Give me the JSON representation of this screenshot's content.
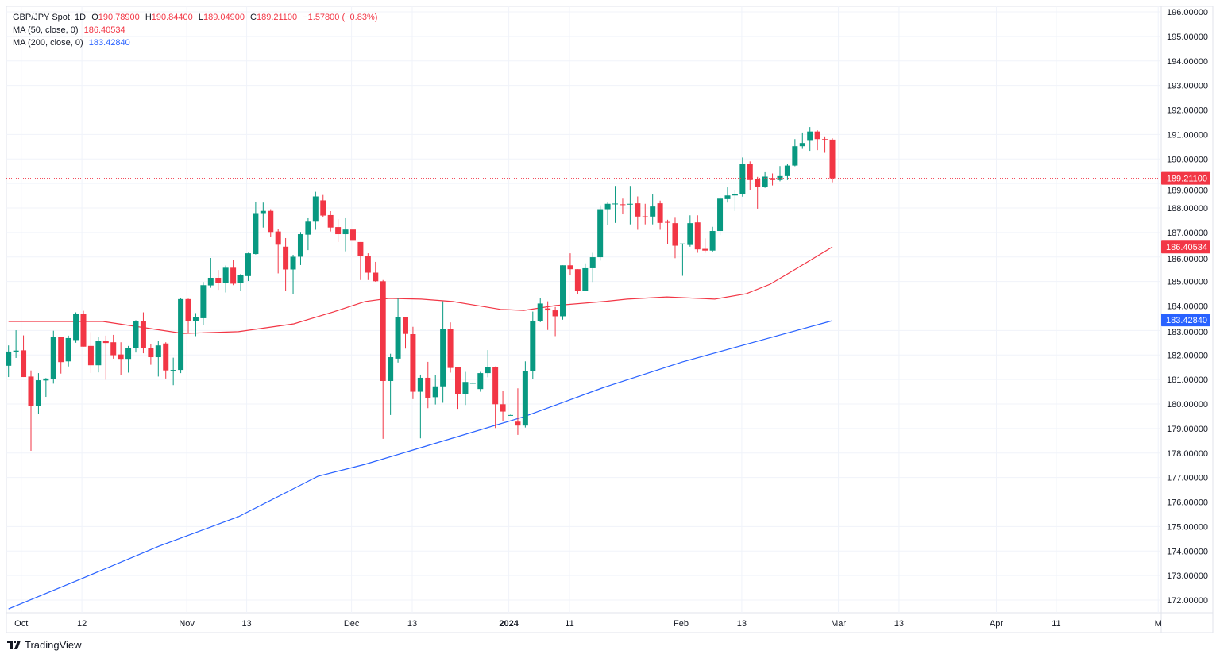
{
  "header": {
    "symbol": "GBP/JPY Spot, 1D",
    "o_label": "O",
    "o": "190.78900",
    "h_label": "H",
    "h": "190.84400",
    "l_label": "L",
    "l": "189.04900",
    "c_label": "C",
    "c": "189.21100",
    "change": "−1.57800 (−0.83%)"
  },
  "indicators": [
    {
      "label": "MA (50, close, 0)",
      "value": "186.40534",
      "color": "#f23645"
    },
    {
      "label": "MA (200, close, 0)",
      "value": "183.42840",
      "color": "#2962ff"
    }
  ],
  "branding": {
    "name": "TradingView"
  },
  "colors": {
    "up": "#089981",
    "down": "#f23645",
    "ma50": "#f23645",
    "ma200": "#2962ff",
    "grid": "#f0f3fa"
  },
  "chart_data": {
    "type": "candlestick",
    "title": "GBP/JPY Spot, 1D",
    "ylim": [
      172,
      196
    ],
    "y_ticks": [
      "196.00000",
      "195.00000",
      "194.00000",
      "193.00000",
      "192.00000",
      "191.00000",
      "190.00000",
      "189.00000",
      "188.00000",
      "187.00000",
      "186.00000",
      "185.00000",
      "184.00000",
      "183.00000",
      "182.00000",
      "181.00000",
      "180.00000",
      "179.00000",
      "178.00000",
      "177.00000",
      "176.00000",
      "175.00000",
      "174.00000",
      "173.00000",
      "172.00000"
    ],
    "x_ticks": [
      {
        "label": "Oct",
        "bar": 1.7
      },
      {
        "label": "12",
        "bar": 9.8
      },
      {
        "label": "Nov",
        "bar": 23.8
      },
      {
        "label": "13",
        "bar": 31.8
      },
      {
        "label": "Dec",
        "bar": 45.8
      },
      {
        "label": "13",
        "bar": 53.9
      },
      {
        "label": "2024",
        "bar": 66.8
      },
      {
        "label": "11",
        "bar": 74.9
      },
      {
        "label": "Feb",
        "bar": 89.8
      },
      {
        "label": "13",
        "bar": 97.9
      },
      {
        "label": "Mar",
        "bar": 110.8
      },
      {
        "label": "13",
        "bar": 118.9
      },
      {
        "label": "Apr",
        "bar": 131.9
      },
      {
        "label": "11",
        "bar": 139.9
      },
      {
        "label": "M",
        "bar": 153.5
      }
    ],
    "candles_ohlc": [
      [
        181.56,
        182.39,
        181.1,
        182.14
      ],
      [
        182.12,
        183.01,
        181.88,
        182.18
      ],
      [
        182.19,
        182.8,
        181.1,
        181.1
      ],
      [
        181.12,
        181.37,
        178.09,
        179.93
      ],
      [
        179.93,
        181.26,
        179.58,
        180.97
      ],
      [
        180.96,
        181.06,
        180.29,
        181.04
      ],
      [
        181.01,
        182.99,
        180.83,
        182.75
      ],
      [
        182.75,
        182.75,
        181.24,
        181.71
      ],
      [
        181.74,
        182.79,
        181.53,
        182.69
      ],
      [
        182.61,
        183.74,
        182.5,
        183.66
      ],
      [
        183.66,
        183.8,
        182.34,
        182.34
      ],
      [
        182.37,
        182.93,
        181.26,
        181.58
      ],
      [
        181.58,
        182.72,
        181.29,
        182.58
      ],
      [
        182.58,
        182.79,
        180.99,
        182.49
      ],
      [
        182.52,
        182.82,
        181.85,
        181.99
      ],
      [
        182.02,
        182.52,
        181.17,
        181.84
      ],
      [
        181.84,
        182.37,
        181.28,
        182.29
      ],
      [
        182.27,
        183.42,
        182.1,
        183.37
      ],
      [
        183.37,
        183.74,
        182.07,
        182.27
      ],
      [
        182.29,
        182.43,
        181.6,
        181.91
      ],
      [
        181.91,
        182.58,
        181.12,
        182.39
      ],
      [
        182.47,
        182.52,
        181.04,
        181.37
      ],
      [
        181.37,
        181.89,
        180.77,
        181.39
      ],
      [
        181.39,
        184.34,
        181.26,
        184.28
      ],
      [
        184.28,
        184.3,
        182.91,
        183.37
      ],
      [
        183.4,
        183.71,
        182.77,
        183.56
      ],
      [
        183.5,
        184.98,
        183.22,
        184.85
      ],
      [
        184.84,
        185.96,
        184.74,
        185.15
      ],
      [
        185.15,
        185.47,
        184.66,
        184.93
      ],
      [
        184.93,
        185.65,
        184.55,
        185.56
      ],
      [
        185.56,
        185.87,
        184.85,
        184.91
      ],
      [
        184.93,
        185.31,
        184.63,
        185.26
      ],
      [
        185.22,
        186.17,
        185.02,
        186.15
      ],
      [
        186.12,
        188.26,
        186.1,
        187.79
      ],
      [
        187.79,
        188.22,
        187.2,
        187.88
      ],
      [
        187.88,
        187.95,
        186.82,
        187.02
      ],
      [
        187.04,
        187.14,
        185.33,
        186.5
      ],
      [
        186.42,
        186.77,
        184.63,
        185.49
      ],
      [
        185.49,
        186.09,
        184.47,
        186.01
      ],
      [
        186.01,
        187.02,
        185.67,
        186.93
      ],
      [
        186.91,
        187.58,
        186.28,
        187.44
      ],
      [
        187.44,
        188.66,
        187.11,
        188.47
      ],
      [
        188.31,
        188.53,
        187.61,
        187.69
      ],
      [
        187.71,
        187.87,
        187.04,
        187.2
      ],
      [
        187.22,
        187.54,
        186.61,
        186.93
      ],
      [
        186.93,
        187.58,
        186.23,
        187.12
      ],
      [
        187.12,
        187.5,
        186.2,
        186.66
      ],
      [
        186.61,
        186.61,
        185.06,
        186.03
      ],
      [
        186.04,
        186.15,
        185.06,
        185.36
      ],
      [
        185.36,
        185.8,
        184.99,
        185.01
      ],
      [
        185.01,
        185.06,
        178.58,
        180.94
      ],
      [
        180.94,
        182.05,
        179.55,
        181.91
      ],
      [
        181.85,
        184.34,
        181.69,
        183.55
      ],
      [
        183.55,
        183.55,
        182.26,
        182.86
      ],
      [
        182.85,
        183.15,
        180.2,
        180.5
      ],
      [
        180.5,
        181.2,
        178.6,
        181.07
      ],
      [
        181.07,
        181.72,
        179.83,
        180.26
      ],
      [
        180.28,
        181.17,
        179.98,
        180.72
      ],
      [
        180.72,
        184.19,
        180.05,
        183.06
      ],
      [
        183.06,
        183.33,
        181.28,
        181.47
      ],
      [
        181.49,
        181.49,
        179.8,
        180.39
      ],
      [
        180.39,
        181.31,
        179.96,
        180.9
      ],
      [
        180.85,
        180.88,
        180.82,
        180.86
      ],
      [
        180.61,
        181.31,
        180.5,
        181.26
      ],
      [
        181.26,
        182.2,
        181.09,
        181.49
      ],
      [
        181.49,
        181.53,
        179.02,
        179.99
      ],
      [
        179.99,
        180.53,
        179.31,
        179.69
      ],
      [
        179.54,
        179.56,
        179.53,
        179.55
      ],
      [
        179.28,
        180.64,
        178.74,
        179.12
      ],
      [
        179.12,
        181.74,
        179.04,
        181.36
      ],
      [
        181.36,
        183.77,
        181.02,
        183.38
      ],
      [
        183.38,
        184.33,
        183.34,
        184.1
      ],
      [
        183.9,
        184.19,
        183.02,
        183.82
      ],
      [
        183.82,
        183.96,
        182.77,
        183.58
      ],
      [
        183.58,
        185.66,
        183.44,
        185.66
      ],
      [
        185.66,
        186.15,
        185.27,
        185.5
      ],
      [
        185.5,
        185.5,
        184.47,
        184.63
      ],
      [
        184.63,
        185.74,
        184.63,
        185.54
      ],
      [
        185.54,
        186.17,
        184.98,
        185.99
      ],
      [
        185.99,
        188.11,
        185.85,
        187.95
      ],
      [
        187.95,
        188.22,
        187.3,
        188.17
      ],
      [
        188.17,
        188.9,
        187.39,
        188.18
      ],
      [
        188.15,
        188.38,
        187.74,
        188.14
      ],
      [
        188.15,
        188.9,
        187.33,
        188.17
      ],
      [
        188.19,
        188.47,
        187.11,
        187.65
      ],
      [
        187.66,
        188.17,
        187.33,
        187.65
      ],
      [
        187.65,
        188.55,
        187.33,
        188.06
      ],
      [
        188.19,
        188.3,
        187.11,
        187.39
      ],
      [
        187.43,
        187.52,
        186.52,
        187.41
      ],
      [
        187.38,
        187.6,
        185.95,
        186.46
      ],
      [
        186.52,
        186.55,
        185.23,
        186.55
      ],
      [
        186.49,
        187.7,
        186.42,
        187.38
      ],
      [
        187.41,
        187.7,
        186.17,
        186.31
      ],
      [
        186.33,
        186.76,
        186.17,
        186.26
      ],
      [
        186.26,
        187.23,
        186.2,
        187.06
      ],
      [
        187.06,
        188.46,
        186.89,
        188.38
      ],
      [
        188.36,
        188.84,
        188.22,
        188.51
      ],
      [
        188.51,
        188.71,
        187.87,
        188.57
      ],
      [
        188.57,
        190.06,
        188.46,
        189.81
      ],
      [
        189.81,
        189.9,
        188.73,
        189.14
      ],
      [
        189.17,
        189.27,
        187.97,
        188.85
      ],
      [
        188.85,
        189.46,
        188.82,
        189.28
      ],
      [
        189.22,
        189.41,
        188.92,
        189.14
      ],
      [
        189.14,
        189.71,
        189.09,
        189.3
      ],
      [
        189.3,
        189.79,
        189.14,
        189.73
      ],
      [
        189.73,
        190.81,
        189.7,
        190.52
      ],
      [
        190.52,
        191.08,
        190.41,
        190.65
      ],
      [
        190.74,
        191.3,
        190.33,
        191.12
      ],
      [
        191.12,
        191.17,
        190.36,
        190.81
      ],
      [
        190.81,
        190.92,
        190.25,
        190.76
      ],
      [
        190.789,
        190.844,
        189.049,
        189.211
      ]
    ],
    "ma50": [
      [
        0,
        183.37
      ],
      [
        12.6,
        183.37
      ],
      [
        23.3,
        182.88
      ],
      [
        30.7,
        182.95
      ],
      [
        38.1,
        183.27
      ],
      [
        43.4,
        183.76
      ],
      [
        47.6,
        184.18
      ],
      [
        50.8,
        184.31
      ],
      [
        55.1,
        184.28
      ],
      [
        59.3,
        184.18
      ],
      [
        65.7,
        183.86
      ],
      [
        68.8,
        183.82
      ],
      [
        73.1,
        184.02
      ],
      [
        79.5,
        184.18
      ],
      [
        82.6,
        184.28
      ],
      [
        87.9,
        184.37
      ],
      [
        94.3,
        184.28
      ],
      [
        98.5,
        184.5
      ],
      [
        101.7,
        184.89
      ],
      [
        104.9,
        185.47
      ],
      [
        110,
        186.41
      ]
    ],
    "ma200": [
      [
        0,
        171.64
      ],
      [
        9.5,
        172.84
      ],
      [
        20.1,
        174.2
      ],
      [
        30.7,
        175.4
      ],
      [
        41.3,
        177.05
      ],
      [
        47.6,
        177.54
      ],
      [
        54,
        178.12
      ],
      [
        68.8,
        179.48
      ],
      [
        79.5,
        180.68
      ],
      [
        90,
        181.72
      ],
      [
        100.7,
        182.62
      ],
      [
        110,
        183.4
      ]
    ],
    "last_price": {
      "value": 189.211,
      "label": "189.21100"
    },
    "price_tags": [
      {
        "label": "189.21100",
        "value": 189.211,
        "color": "#f23645"
      },
      {
        "label": "186.40534",
        "value": 186.40534,
        "color": "#f23645"
      },
      {
        "label": "183.42840",
        "value": 183.4284,
        "color": "#2962ff"
      }
    ]
  }
}
